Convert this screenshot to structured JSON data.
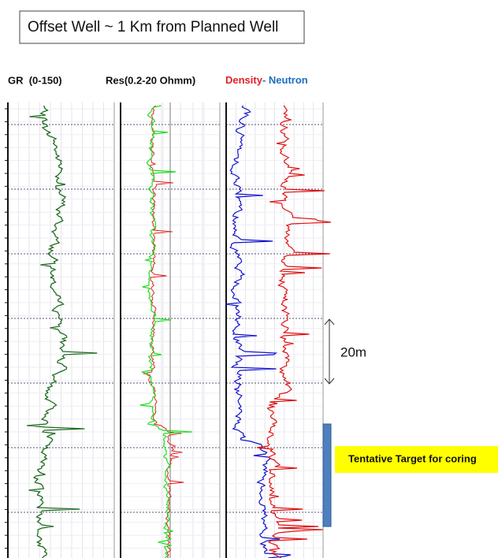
{
  "header": {
    "title": "Offset Well ~ 1 Km from Planned Well"
  },
  "tracks": [
    {
      "label": "GR  (0-150)"
    },
    {
      "label": "Res(0.2-20 Ohmm)"
    },
    {
      "density": "Density",
      "separator": "- ",
      "neutron": "Neutron"
    }
  ],
  "scale_label": "20m",
  "target_label": "Tentative Target for coring"
}
